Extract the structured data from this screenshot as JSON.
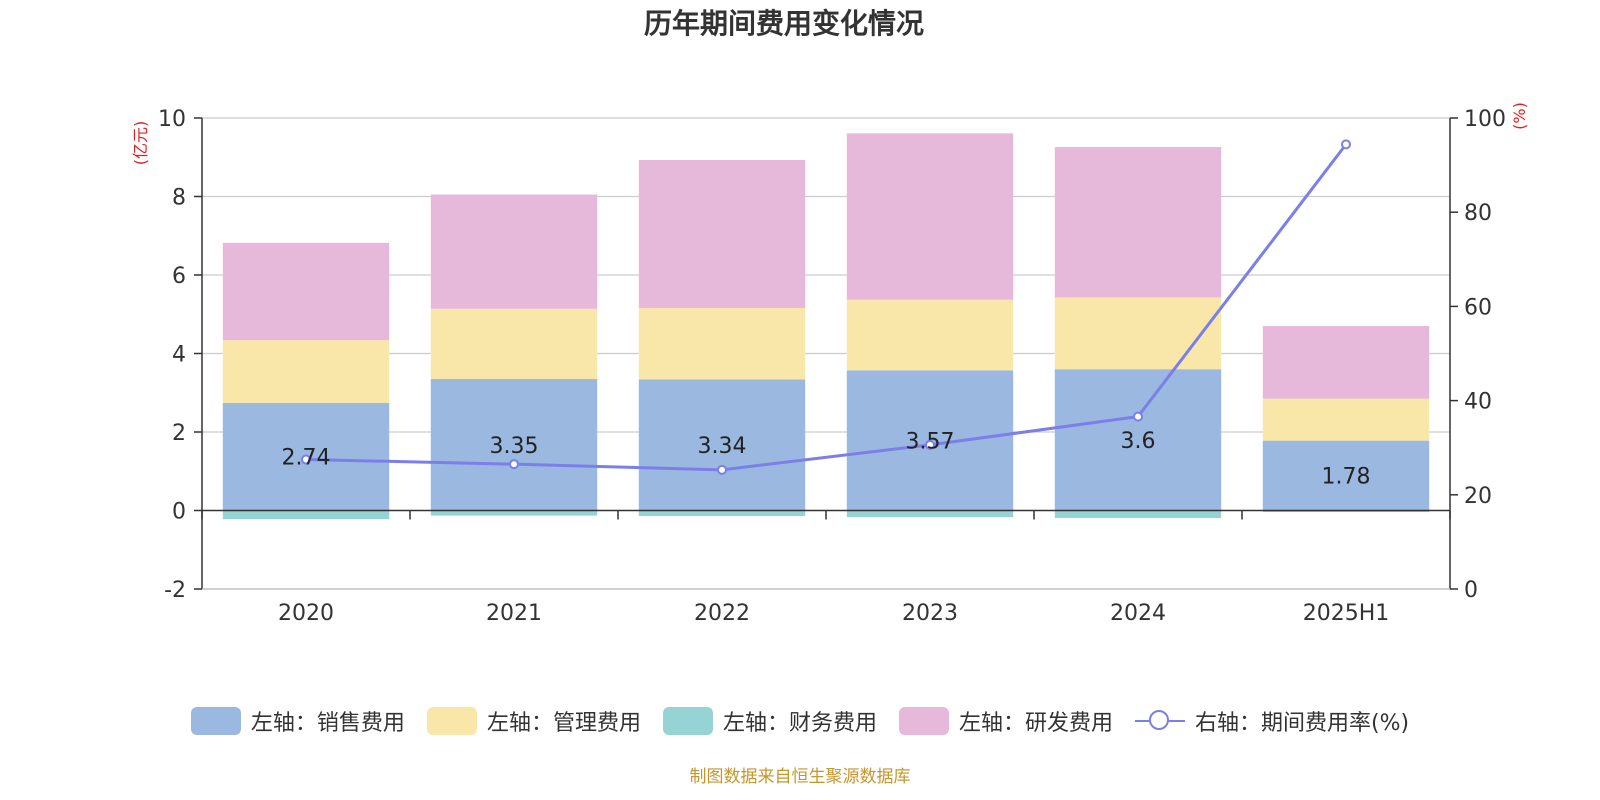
{
  "chart_data": {
    "type": "bar",
    "title": "历年期间费用变化情况",
    "categories": [
      "2020",
      "2021",
      "2022",
      "2023",
      "2024",
      "2025H1"
    ],
    "left_axis": {
      "unit_label": "(亿元)",
      "ylim": [
        -2,
        10
      ],
      "ticks": [
        -2,
        0,
        2,
        4,
        6,
        8,
        10
      ]
    },
    "right_axis": {
      "unit_label": "(%)",
      "ylim": [
        0,
        100
      ],
      "ticks": [
        0,
        20,
        40,
        60,
        80,
        100
      ]
    },
    "stacked": true,
    "series": [
      {
        "name": "左轴：销售费用",
        "axis": "left",
        "color": "#9bb8e1",
        "values": [
          2.74,
          3.35,
          3.34,
          3.57,
          3.6,
          1.78
        ],
        "data_labels": [
          "2.74",
          "3.35",
          "3.34",
          "3.57",
          "3.6",
          "1.78"
        ]
      },
      {
        "name": "左轴：管理费用",
        "axis": "left",
        "color": "#f8e7a8",
        "values": [
          1.6,
          1.79,
          1.82,
          1.8,
          1.83,
          1.07
        ]
      },
      {
        "name": "左轴：财务费用",
        "axis": "left",
        "color": "#95d3d4",
        "values": [
          -0.22,
          -0.13,
          -0.14,
          -0.17,
          -0.19,
          -0.04
        ]
      },
      {
        "name": "左轴：研发费用",
        "axis": "left",
        "color": "#e6b8d9",
        "values": [
          2.48,
          2.91,
          3.77,
          4.24,
          3.83,
          1.85
        ]
      },
      {
        "name": "右轴：期间费用率(%)",
        "axis": "right",
        "type": "line",
        "color": "#7b7fe8",
        "values": [
          27.5,
          26.5,
          25.3,
          30.6,
          36.6,
          94.4
        ]
      }
    ],
    "grid": true,
    "legend_position": "bottom"
  },
  "source": "制图数据来自恒生聚源数据库"
}
